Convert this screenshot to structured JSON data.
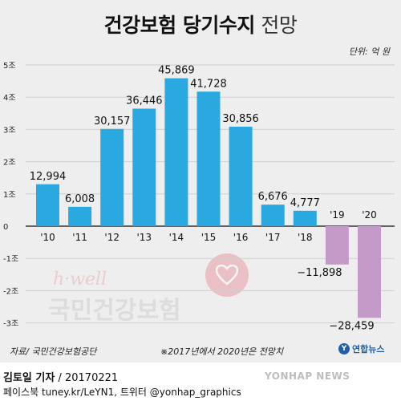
{
  "header": {
    "title_bold": "건강보험 당기수지",
    "title_light": "전망",
    "unit": "단위: 억 원"
  },
  "chart_data": {
    "type": "bar",
    "title": "건강보험 당기수지 전망",
    "unit": "억 원",
    "categories": [
      "'10",
      "'11",
      "'12",
      "'13",
      "'14",
      "'15",
      "'16",
      "'17",
      "'18",
      "'19",
      "'20"
    ],
    "values": [
      12994,
      6008,
      30157,
      36446,
      45869,
      41728,
      30856,
      6676,
      4777,
      -11898,
      -28459
    ],
    "value_labels": [
      "12,994",
      "6,008",
      "30,157",
      "36,446",
      "45,869",
      "41,728",
      "30,856",
      "6,676",
      "4,777",
      "−11,898",
      "−28,459"
    ],
    "ylim": [
      -30000,
      50000
    ],
    "y_ticks": [
      {
        "value": 50000,
        "label": "5조"
      },
      {
        "value": 40000,
        "label": "4조"
      },
      {
        "value": 30000,
        "label": "3조"
      },
      {
        "value": 20000,
        "label": "2조"
      },
      {
        "value": 10000,
        "label": "1조"
      },
      {
        "value": 0,
        "label": "0"
      },
      {
        "value": -10000,
        "label": "-1조"
      },
      {
        "value": -20000,
        "label": "-2조"
      },
      {
        "value": -30000,
        "label": "-3조"
      }
    ],
    "grid": true,
    "colors": {
      "positive": "#2aa9e0",
      "negative": "#c49ac9",
      "grid": "#cfcfcf",
      "axis": "#333333"
    }
  },
  "footnotes": {
    "source": "자료/ 국민건강보험공단",
    "note": "※2017년에서 2020년은 전망치",
    "agency": "연합뉴스"
  },
  "watermark": {
    "brand": "h·well",
    "org": "국민건강보험",
    "icon": "heart-icon"
  },
  "footer": {
    "reporter": "김토일 기자",
    "date": "/ 20170221",
    "social": "페이스북 tuney.kr/LeYN1, 트위터 @yonhap_graphics",
    "yonhap": "YONHAP NEWS"
  }
}
